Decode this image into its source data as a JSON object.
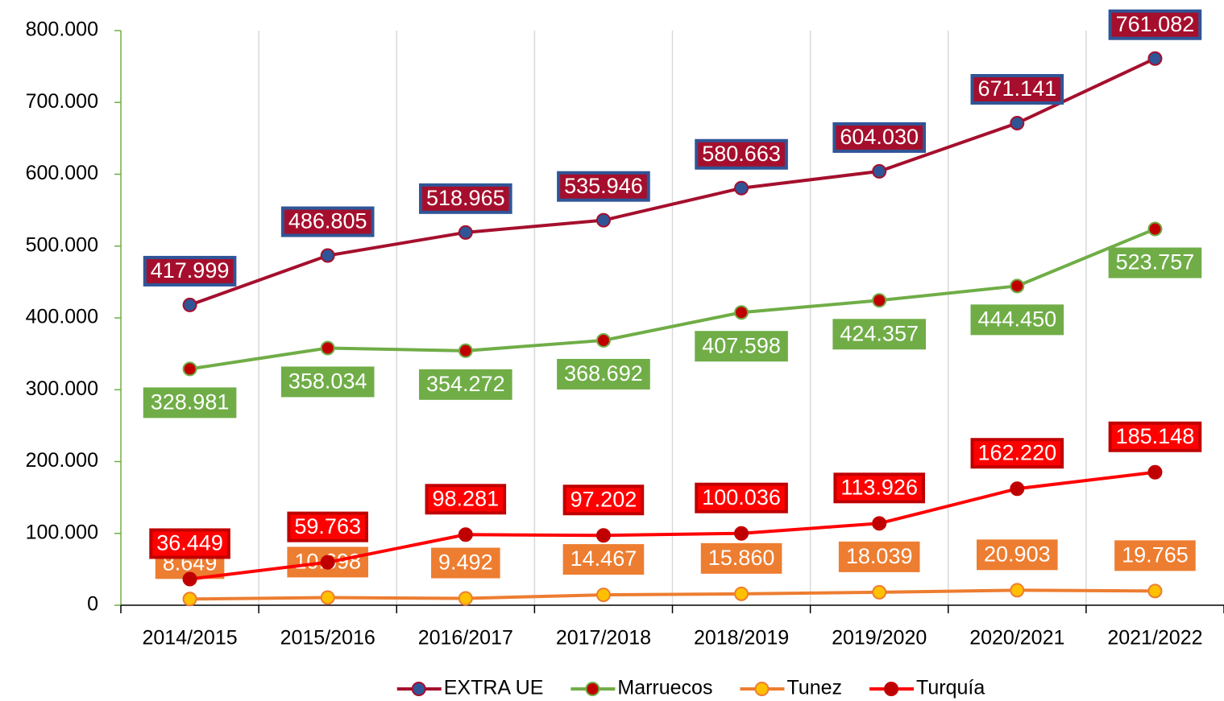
{
  "chart_data": {
    "type": "line",
    "categories": [
      "2014/2015",
      "2015/2016",
      "2016/2017",
      "2017/2018",
      "2018/2019",
      "2019/2020",
      "2020/2021",
      "2021/2022"
    ],
    "series": [
      {
        "name": "EXTRA UE",
        "color": "#a50f2d",
        "marker_color": "#2f5597",
        "label_fill": "#a50f2d",
        "label_border": "#2f5597",
        "values": [
          417999,
          486805,
          518965,
          535946,
          580663,
          604030,
          671141,
          761082
        ],
        "value_labels": [
          "417.999",
          "486.805",
          "518.965",
          "535.946",
          "580.663",
          "604.030",
          "671.141",
          "761.082"
        ]
      },
      {
        "name": "Marruecos",
        "color": "#70ad47",
        "marker_color": "#c00000",
        "label_fill": "#70ad47",
        "label_border": "#70ad47",
        "values": [
          328981,
          358034,
          354272,
          368692,
          407598,
          424357,
          444450,
          523757
        ],
        "value_labels": [
          "328.981",
          "358.034",
          "354.272",
          "368.692",
          "407.598",
          "424.357",
          "444.450",
          "523.757"
        ]
      },
      {
        "name": "Tunez",
        "color": "#ed7d31",
        "marker_color": "#ffc000",
        "label_fill": "#ed7d31",
        "label_border": "#ed7d31",
        "values": [
          8649,
          10698,
          9492,
          14467,
          15860,
          18039,
          20903,
          19765
        ],
        "value_labels": [
          "8.649",
          "10.698",
          "9.492",
          "14.467",
          "15.860",
          "18.039",
          "20.903",
          "19.765"
        ]
      },
      {
        "name": "Turquía",
        "color": "#ff0000",
        "marker_color": "#c00000",
        "label_fill": "#ff0000",
        "label_border": "#c00000",
        "values": [
          36449,
          59763,
          98281,
          97202,
          100036,
          113926,
          162220,
          185148
        ],
        "value_labels": [
          "36.449",
          "59.763",
          "98.281",
          "97.202",
          "100.036",
          "113.926",
          "162.220",
          "185.148"
        ]
      }
    ],
    "ylim": [
      0,
      800000
    ],
    "yticks": [
      0,
      {
        "value": 100000,
        "label": "100.000"
      },
      {
        "value": 200000,
        "label": "200.000"
      },
      {
        "value": 300000,
        "label": "300.000"
      },
      {
        "value": 400000,
        "label": "400.000"
      },
      {
        "value": 500000,
        "label": "500.000"
      },
      {
        "value": 600000,
        "label": "600.000"
      },
      {
        "value": 700000,
        "label": "700.000"
      },
      {
        "value": 800000,
        "label": "800.000"
      }
    ],
    "grid": true,
    "legend": "bottom"
  }
}
